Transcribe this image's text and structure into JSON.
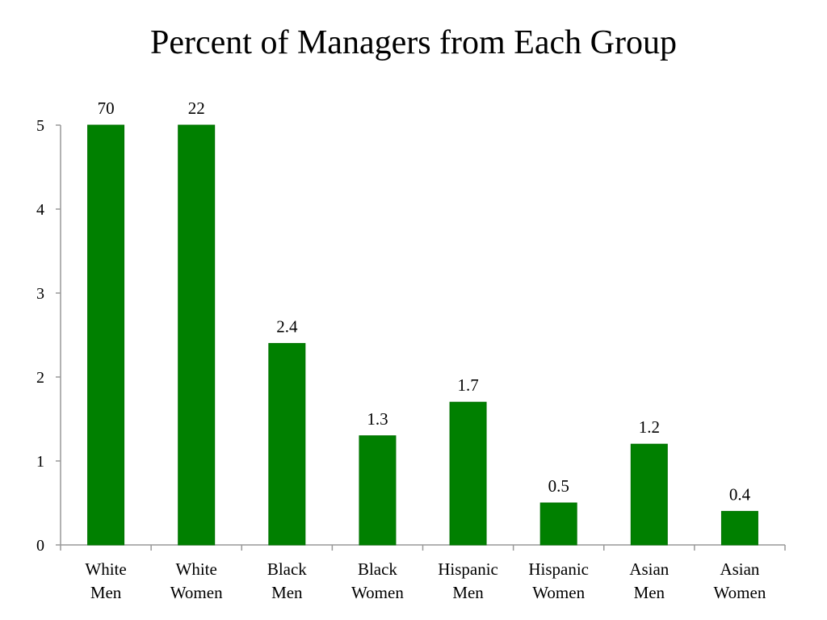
{
  "chart_data": {
    "type": "bar",
    "title": "Percent of Managers from Each Group",
    "xlabel": "",
    "ylabel": "",
    "ylim": [
      0,
      5
    ],
    "yticks": [
      0,
      1,
      2,
      3,
      4,
      5
    ],
    "grid": false,
    "categories": [
      [
        "White",
        "Men"
      ],
      [
        "White",
        "Women"
      ],
      [
        "Black",
        "Men"
      ],
      [
        "Black",
        "Women"
      ],
      [
        "Hispanic",
        "Men"
      ],
      [
        "Hispanic",
        "Women"
      ],
      [
        "Asian",
        "Men"
      ],
      [
        "Asian",
        "Women"
      ]
    ],
    "values": [
      70,
      22,
      2.4,
      1.3,
      1.7,
      0.5,
      1.2,
      0.4
    ],
    "data_labels": [
      "70",
      "22",
      "2.4",
      "1.3",
      "1.7",
      "0.5",
      "1.2",
      "0.4"
    ],
    "bar_color": "#008000",
    "bar_edge_color": "#007000",
    "axis_color": "#999999"
  }
}
